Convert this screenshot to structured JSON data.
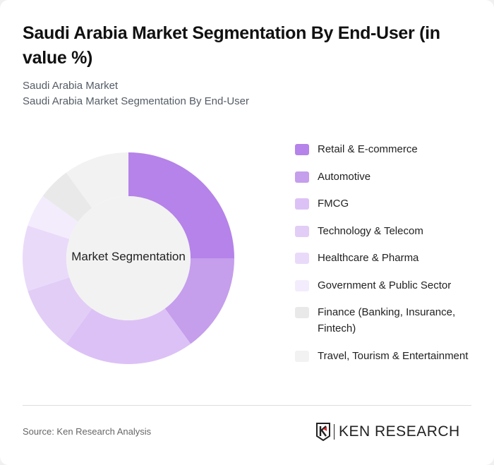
{
  "header": {
    "title": "Saudi Arabia Market Segmentation By End-User (in value %)",
    "subtitle1": "Saudi Arabia Market",
    "subtitle2": "Saudi Arabia Market Segmentation By End-User"
  },
  "chart": {
    "center_label": "Market Segmentation"
  },
  "legend": [
    {
      "label": "Retail & E-commerce",
      "color": "#b583e9"
    },
    {
      "label": "Automotive",
      "color": "#c59eec"
    },
    {
      "label": "FMCG",
      "color": "#dcc1f6"
    },
    {
      "label": "Technology & Telecom",
      "color": "#e2cdf6"
    },
    {
      "label": "Healthcare & Pharma",
      "color": "#e9dafa"
    },
    {
      "label": "Government & Public Sector",
      "color": "#f3ecfc"
    },
    {
      "label": "Finance (Banking, Insurance, Fintech)",
      "color": "#e9e9e9"
    },
    {
      "label": "Travel, Tourism & Entertainment",
      "color": "#f2f2f2"
    }
  ],
  "footer": {
    "source": "Source: Ken Research Analysis",
    "logo_text": "KEN RESEARCH"
  },
  "chart_data": {
    "type": "pie",
    "title": "Saudi Arabia Market Segmentation By End-User (in value %)",
    "subtitle": "Saudi Arabia Market Segmentation By End-User",
    "center_label": "Market Segmentation",
    "categories": [
      "Retail & E-commerce",
      "Automotive",
      "FMCG",
      "Technology & Telecom",
      "Healthcare & Pharma",
      "Government & Public Sector",
      "Finance (Banking, Insurance, Fintech)",
      "Travel, Tourism & Entertainment"
    ],
    "values": [
      25,
      15,
      20,
      10,
      10,
      5,
      5,
      10
    ],
    "colors": [
      "#b583e9",
      "#c59eec",
      "#dcc1f6",
      "#e2cdf6",
      "#e9dafa",
      "#f3ecfc",
      "#e9e9e9",
      "#f2f2f2"
    ],
    "donut": true,
    "legend_position": "right"
  }
}
